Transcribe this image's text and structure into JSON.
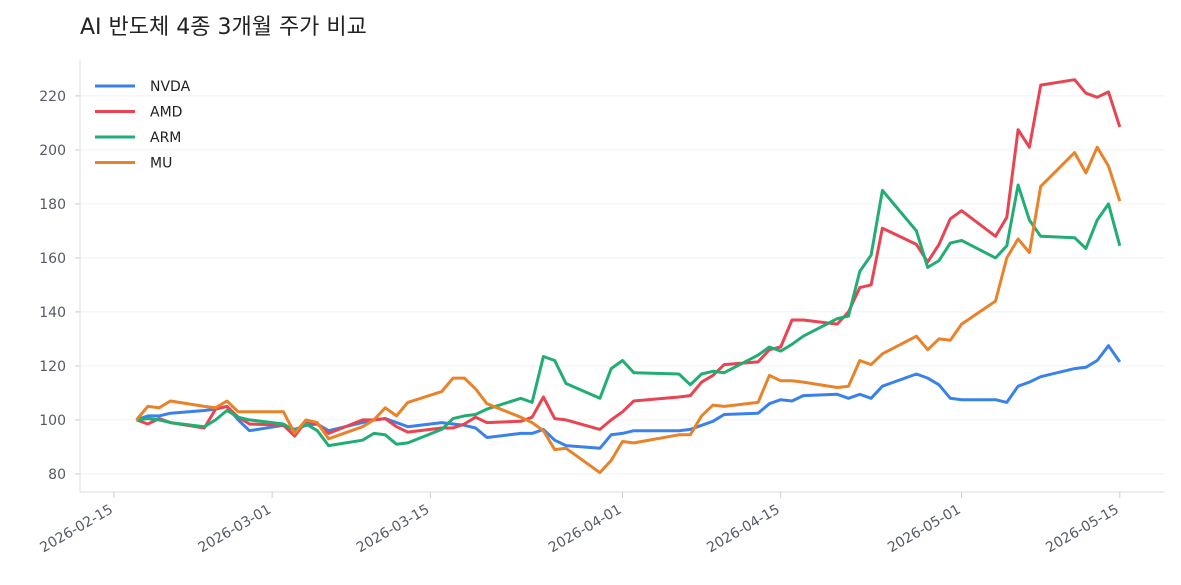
{
  "chart_data": {
    "type": "line",
    "title": "AI 반도체 4종 3개월 주가 비교",
    "x": [
      "2026-02-17",
      "2026-02-18",
      "2026-02-19",
      "2026-02-20",
      "2026-02-23",
      "2026-02-24",
      "2026-02-25",
      "2026-02-26",
      "2026-02-27",
      "2026-03-02",
      "2026-03-03",
      "2026-03-04",
      "2026-03-05",
      "2026-03-06",
      "2026-03-09",
      "2026-03-10",
      "2026-03-11",
      "2026-03-12",
      "2026-03-13",
      "2026-03-16",
      "2026-03-17",
      "2026-03-18",
      "2026-03-19",
      "2026-03-20",
      "2026-03-23",
      "2026-03-24",
      "2026-03-25",
      "2026-03-26",
      "2026-03-27",
      "2026-03-30",
      "2026-03-31",
      "2026-04-01",
      "2026-04-02",
      "2026-04-06",
      "2026-04-07",
      "2026-04-08",
      "2026-04-09",
      "2026-04-10",
      "2026-04-13",
      "2026-04-14",
      "2026-04-15",
      "2026-04-16",
      "2026-04-17",
      "2026-04-20",
      "2026-04-21",
      "2026-04-22",
      "2026-04-23",
      "2026-04-24",
      "2026-04-27",
      "2026-04-28",
      "2026-04-29",
      "2026-04-30",
      "2026-05-01",
      "2026-05-04",
      "2026-05-05",
      "2026-05-06",
      "2026-05-07",
      "2026-05-08",
      "2026-05-11",
      "2026-05-12",
      "2026-05-13",
      "2026-05-14",
      "2026-05-15"
    ],
    "series": [
      {
        "name": "NVDA",
        "color": "#3a82ea",
        "values": [
          100,
          101.5,
          101.5,
          102.5,
          103.5,
          104,
          105,
          100,
          96,
          98,
          96.5,
          98,
          98.5,
          96,
          99,
          100,
          100.5,
          99,
          97.5,
          99,
          98.5,
          98,
          97,
          93.5,
          95,
          95,
          96.5,
          92.5,
          90.5,
          89.5,
          94.5,
          95,
          96,
          96,
          96.5,
          98,
          99.5,
          102,
          102.5,
          106,
          107.5,
          107,
          109,
          109.5,
          108,
          109.5,
          108,
          112.5,
          117,
          115.5,
          113,
          108,
          107.5,
          107.5,
          106.5,
          112.5,
          114,
          116,
          119,
          119.5,
          122,
          127.5,
          121.5
        ]
      },
      {
        "name": "AMD",
        "color": "#e84452",
        "values": [
          100,
          98.5,
          100.5,
          99,
          97,
          104,
          105,
          101,
          98.5,
          98,
          94,
          99.5,
          98.5,
          95,
          100,
          100,
          100.5,
          97.5,
          95.5,
          97,
          97,
          98.5,
          101,
          99,
          99.5,
          101,
          108.5,
          100.5,
          100,
          96.5,
          100,
          103,
          107,
          108.5,
          109,
          114,
          116.5,
          120.5,
          121.5,
          126,
          127,
          137,
          137,
          135.5,
          140,
          149,
          150,
          171,
          165,
          158.5,
          165,
          174.5,
          177.5,
          168,
          175,
          207.5,
          201,
          224,
          226,
          221,
          219.5,
          221.5,
          208.5
        ]
      },
      {
        "name": "ARM",
        "color": "#21ad74",
        "values": [
          100,
          100.5,
          100,
          99,
          97.5,
          100,
          103.5,
          101,
          100,
          98.5,
          96,
          98.5,
          96,
          90.5,
          92.5,
          95,
          94.5,
          91,
          91.5,
          96.5,
          100.5,
          101.5,
          102,
          104,
          108,
          106.5,
          123.5,
          122,
          113.5,
          108,
          119,
          122,
          117.5,
          117,
          113,
          117,
          118,
          117.5,
          124,
          127,
          125.5,
          128,
          131,
          137.5,
          138.5,
          155,
          161,
          185,
          170,
          156.5,
          159,
          165.5,
          166.5,
          160,
          164.5,
          187,
          174,
          168,
          167.5,
          163.5,
          174,
          180,
          164.5
        ]
      },
      {
        "name": "MU",
        "color": "#e8832a",
        "values": [
          100,
          105,
          104.5,
          107,
          105,
          104.5,
          107,
          103,
          103,
          103,
          95,
          100,
          99,
          93,
          97.5,
          100,
          104.5,
          101.5,
          106.5,
          110.5,
          115.5,
          115.5,
          111.5,
          106,
          101,
          99,
          96,
          89,
          89.5,
          80.5,
          85,
          92,
          91.5,
          94.5,
          94.5,
          101.5,
          105.5,
          105,
          106.5,
          116.5,
          114.5,
          114.5,
          114,
          112,
          112.5,
          122,
          120.5,
          124.5,
          131,
          126,
          130,
          129.5,
          135.5,
          144,
          160,
          167,
          162,
          186.5,
          199,
          191.5,
          201,
          194,
          181
        ]
      }
    ],
    "xlim": [
      "2026-02-12",
      "2026-05-19"
    ],
    "xticks": [
      "2026-02-15",
      "2026-03-01",
      "2026-03-15",
      "2026-04-01",
      "2026-04-15",
      "2026-05-01",
      "2026-05-15"
    ],
    "ylim": [
      73.3,
      233.3
    ],
    "yticks": [
      80,
      100,
      120,
      140,
      160,
      180,
      200,
      220
    ],
    "grid": true,
    "legend": "upper-left"
  }
}
